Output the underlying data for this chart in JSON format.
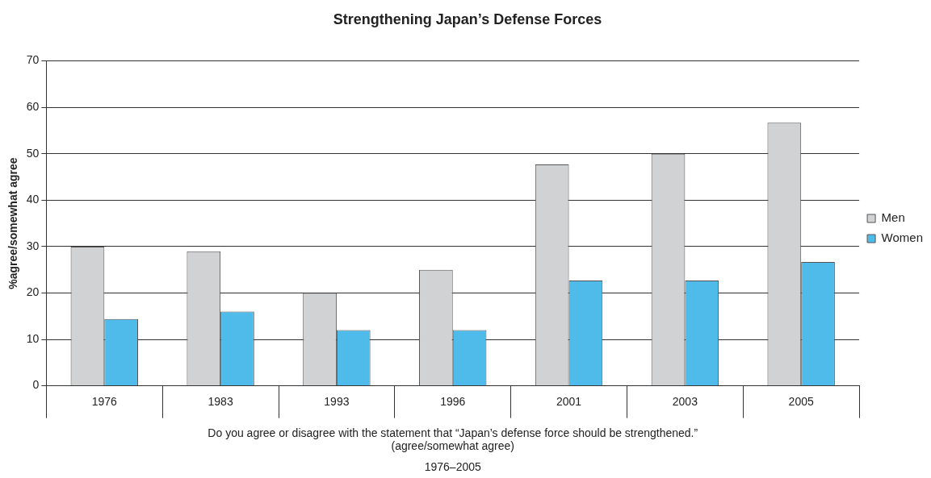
{
  "chart_data": {
    "type": "bar",
    "title": "Strengthening Japan’s Defense Forces",
    "xlabel": "Do you agree or disagree with the statement that “Japan’s defense force should be strengthened.”\n(agree/somewhat agree)",
    "ylabel": "%agree/somewhat agree",
    "annotations": [
      "1976–2005"
    ],
    "categories": [
      "1976",
      "1983",
      "1993",
      "1996",
      "2001",
      "2003",
      "2005"
    ],
    "series": [
      {
        "name": "Men",
        "color": "#d1d2d4",
        "values": [
          30,
          29,
          20,
          25,
          47.7,
          50,
          56.7
        ]
      },
      {
        "name": "Women",
        "color": "#4fbbea",
        "values": [
          14.4,
          16,
          12,
          12,
          22.7,
          22.7,
          26.7
        ]
      }
    ],
    "ylim": [
      0,
      70
    ],
    "yticks": [
      0,
      10,
      20,
      30,
      40,
      50,
      60,
      70
    ],
    "grid": "y",
    "legend": "right"
  }
}
